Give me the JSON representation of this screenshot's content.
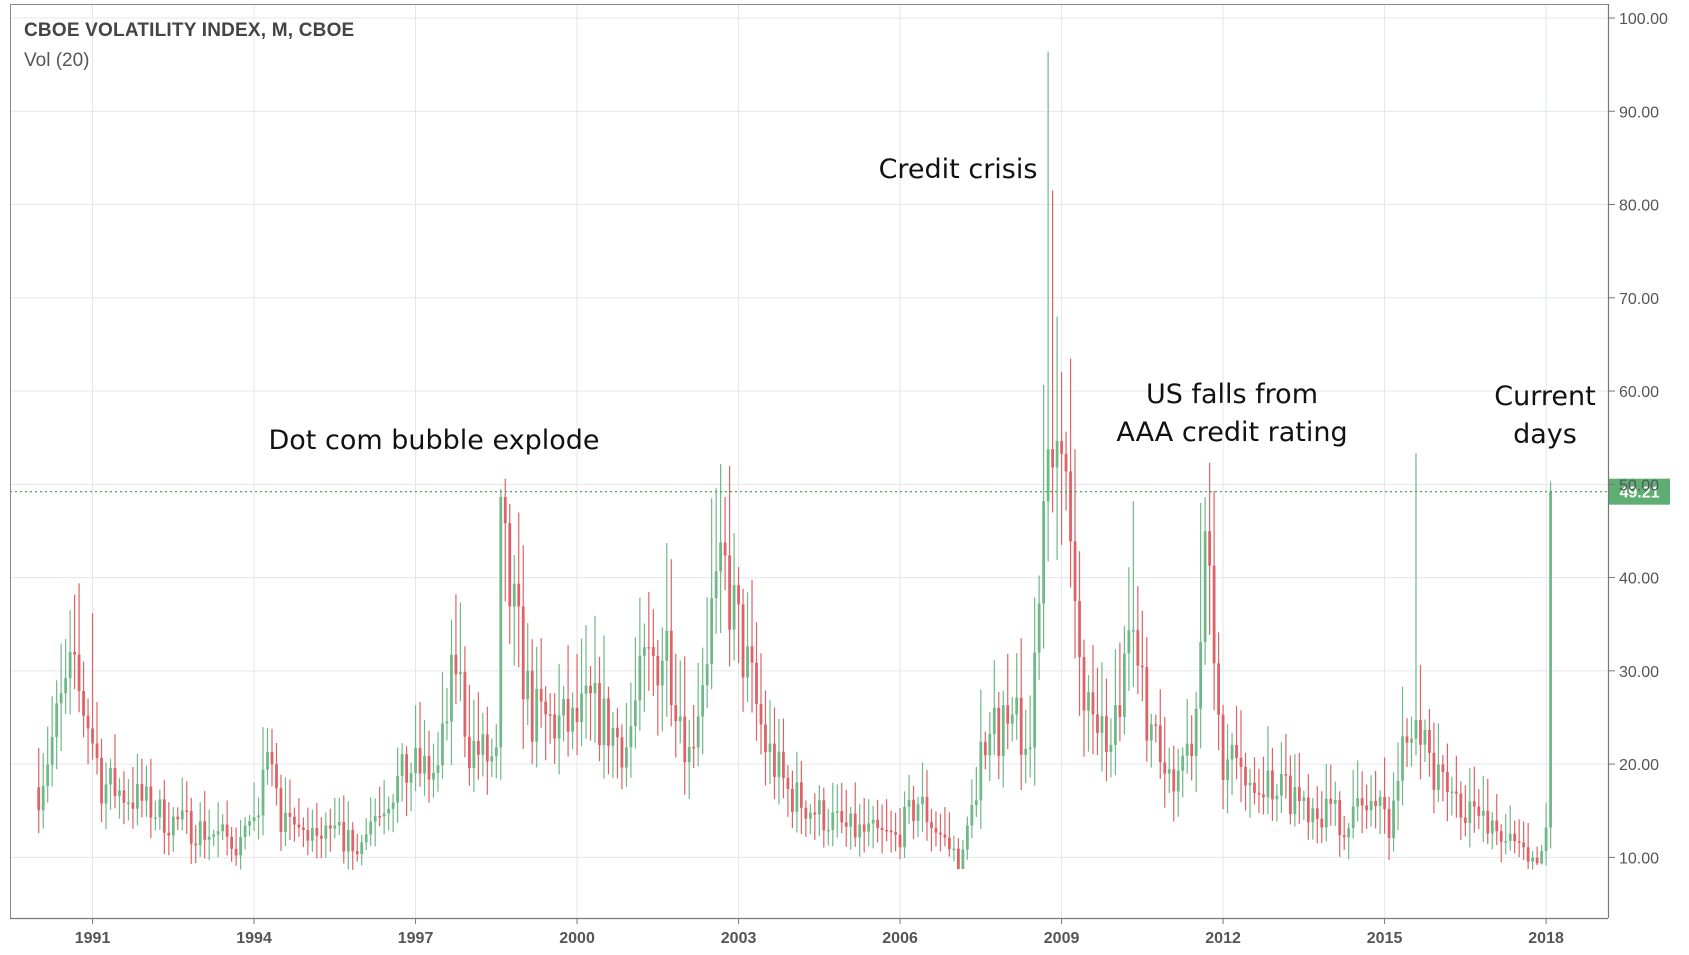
{
  "header": {
    "title": "CBOE VOLATILITY INDEX, M, CBOE",
    "indicator": "Vol (20)"
  },
  "price_label": "49.21",
  "colors": {
    "up": "#6fb887",
    "down": "#de6266",
    "grid": "#e3e7ec",
    "axis": "#555555",
    "price_line": "#3a9a55",
    "price_badge": "#5eae73"
  },
  "chart_data": {
    "type": "candlestick",
    "title": "CBOE VOLATILITY INDEX, M, CBOE",
    "interval": "monthly",
    "x": {
      "type": "time",
      "range": [
        "1990-01",
        "2018-12"
      ],
      "ticks": [
        "1991",
        "1994",
        "1997",
        "2000",
        "2003",
        "2006",
        "2009",
        "2012",
        "2015",
        "2018"
      ]
    },
    "y": {
      "range": [
        3.5,
        101.5
      ],
      "position": "right",
      "ticks": [
        "10.00",
        "20.00",
        "30.00",
        "40.00",
        "50.00",
        "60.00",
        "70.00",
        "80.00",
        "90.00",
        "100.00"
      ]
    },
    "grid": true,
    "last_price": 49.21,
    "anchors": [
      [
        "1990-01",
        17.5
      ],
      [
        "1990-08",
        29.5
      ],
      [
        "1990-12",
        25.0
      ],
      [
        "1991-03",
        18.0
      ],
      [
        "1991-12",
        16.0
      ],
      [
        "1992-06",
        14.0
      ],
      [
        "1993-01",
        13.0
      ],
      [
        "1993-10",
        11.5
      ],
      [
        "1994-02",
        13.5
      ],
      [
        "1994-04",
        23.0
      ],
      [
        "1994-07",
        13.0
      ],
      [
        "1995-01",
        13.0
      ],
      [
        "1995-12",
        12.0
      ],
      [
        "1996-07",
        17.0
      ],
      [
        "1996-12",
        19.5
      ],
      [
        "1997-06",
        19.0
      ],
      [
        "1997-10",
        31.0
      ],
      [
        "1998-01",
        22.0
      ],
      [
        "1998-07",
        20.0
      ],
      [
        "1998-08",
        44.0
      ],
      [
        "1998-10",
        38.0
      ],
      [
        "1999-03",
        25.0
      ],
      [
        "1999-12",
        24.0
      ],
      [
        "2000-04",
        26.0
      ],
      [
        "2000-12",
        22.0
      ],
      [
        "2001-04",
        30.0
      ],
      [
        "2001-09",
        33.0
      ],
      [
        "2002-02",
        21.0
      ],
      [
        "2002-07",
        36.0
      ],
      [
        "2002-10",
        40.0
      ],
      [
        "2003-03",
        30.0
      ],
      [
        "2003-07",
        22.0
      ],
      [
        "2003-12",
        17.0
      ],
      [
        "2004-06",
        15.0
      ],
      [
        "2005-01",
        13.0
      ],
      [
        "2005-12",
        12.0
      ],
      [
        "2006-05",
        16.0
      ],
      [
        "2006-12",
        11.0
      ],
      [
        "2007-02",
        10.0
      ],
      [
        "2007-08",
        23.0
      ],
      [
        "2008-01",
        25.0
      ],
      [
        "2008-06",
        22.0
      ],
      [
        "2008-10",
        60.0
      ],
      [
        "2008-11",
        60.0
      ],
      [
        "2009-02",
        47.0
      ],
      [
        "2009-05",
        30.0
      ],
      [
        "2009-12",
        21.5
      ],
      [
        "2010-05",
        33.0
      ],
      [
        "2010-12",
        17.0
      ],
      [
        "2011-07",
        25.0
      ],
      [
        "2011-09",
        43.0
      ],
      [
        "2012-01",
        20.0
      ],
      [
        "2012-12",
        18.0
      ],
      [
        "2013-06",
        16.5
      ],
      [
        "2014-04",
        14.0
      ],
      [
        "2014-10",
        16.0
      ],
      [
        "2015-02",
        14.0
      ],
      [
        "2015-08",
        28.0
      ],
      [
        "2015-12",
        18.0
      ],
      [
        "2016-06",
        16.0
      ],
      [
        "2016-12",
        14.0
      ],
      [
        "2017-06",
        11.0
      ],
      [
        "2017-12",
        10.0
      ],
      [
        "2018-01",
        13.5
      ],
      [
        "2018-02",
        49.21
      ]
    ],
    "notable_highs": [
      [
        "1990-08",
        36.5
      ],
      [
        "1991-01",
        36.2
      ],
      [
        "1994-04",
        23.9
      ],
      [
        "1997-10",
        38.2
      ],
      [
        "1998-08",
        49.5
      ],
      [
        "2001-09",
        43.7
      ],
      [
        "2002-07",
        48.5
      ],
      [
        "2008-10",
        96.4
      ],
      [
        "2008-11",
        81.5
      ],
      [
        "2008-12",
        68.0
      ],
      [
        "2010-05",
        48.2
      ],
      [
        "2011-08",
        48.0
      ],
      [
        "2015-08",
        53.3
      ],
      [
        "2018-02",
        50.3
      ]
    ]
  },
  "annotations": [
    {
      "lines": [
        "Dot com bubble explode"
      ]
    },
    {
      "lines": [
        "Credit crisis"
      ]
    },
    {
      "lines": [
        "US falls from",
        "AAA credit rating"
      ]
    },
    {
      "lines": [
        "Current",
        "days"
      ]
    }
  ]
}
